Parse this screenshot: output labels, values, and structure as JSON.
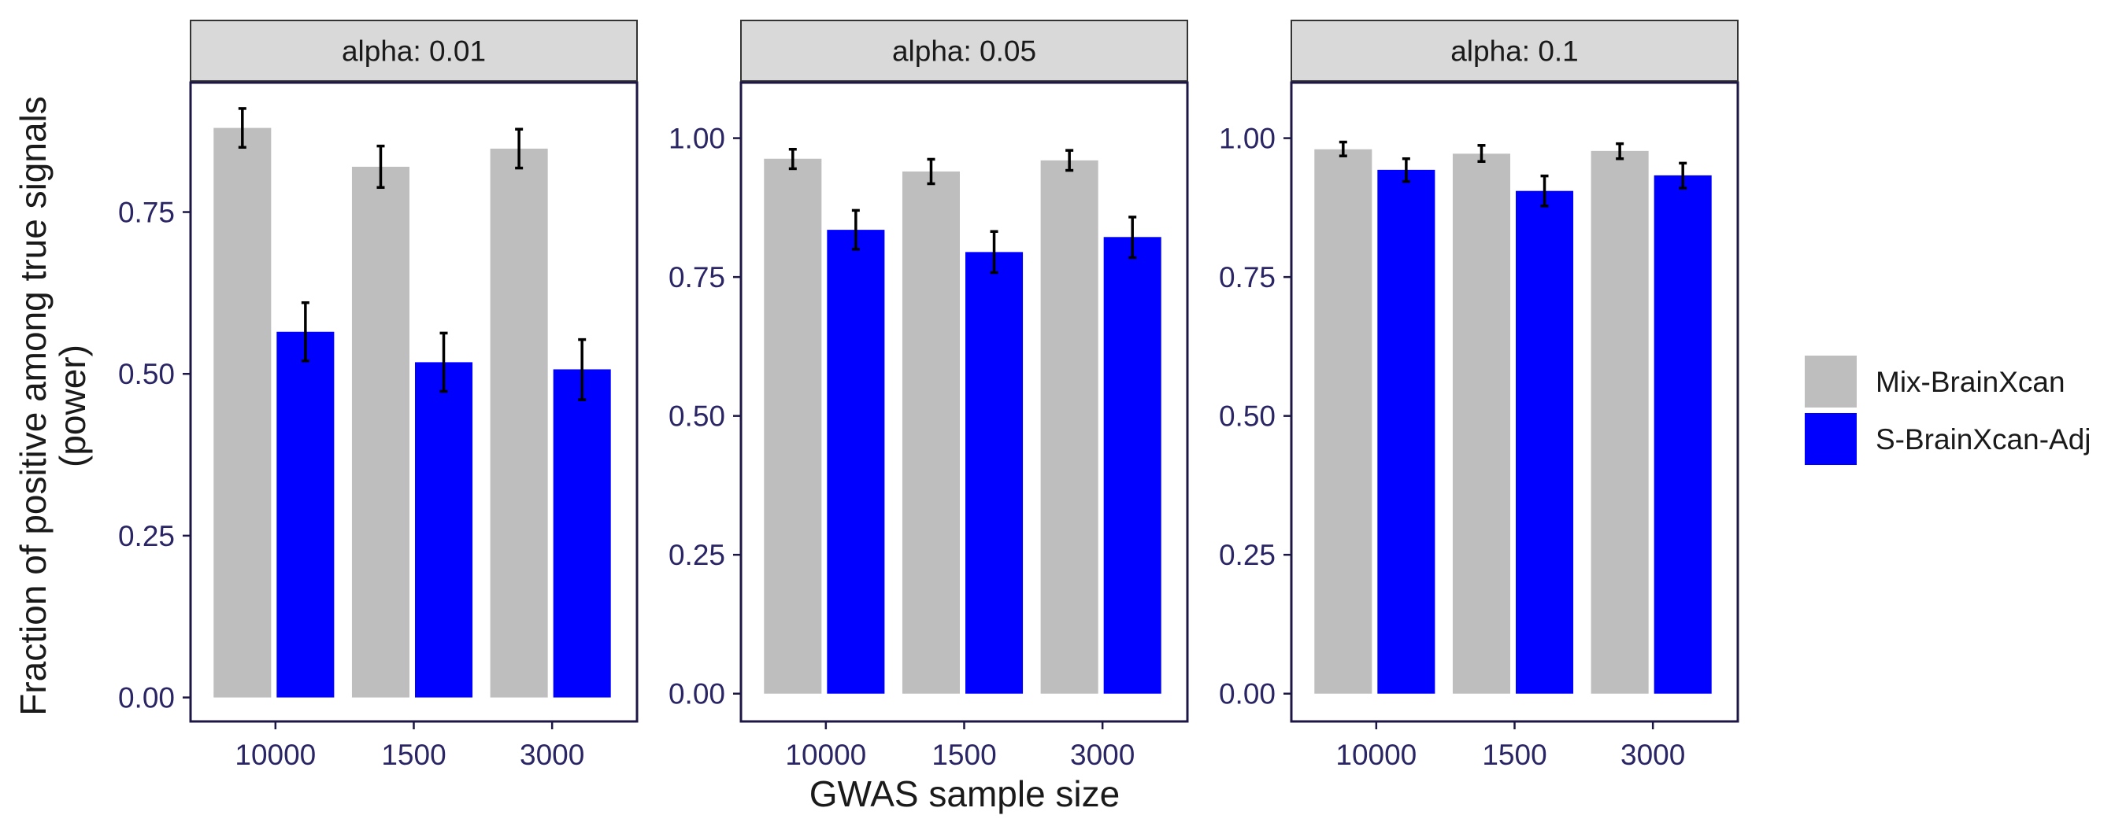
{
  "chart_data": {
    "type": "bar",
    "ylabel_lines": [
      "Fraction of positive among true signals",
      "(power)"
    ],
    "xlabel": "GWAS sample size",
    "categories": [
      "10000",
      "1500",
      "3000"
    ],
    "ylim": [
      0,
      0.95
    ],
    "yticks": [
      "0.00",
      "0.25",
      "0.50",
      "0.75",
      "1.00"
    ],
    "grid": false,
    "legend_position": "right",
    "legend": [
      {
        "name": "Mix-BrainXcan",
        "color": "#bebebe"
      },
      {
        "name": "S-BrainXcan-Adj",
        "color": "#0000ff"
      }
    ],
    "panels": [
      {
        "strip": "alpha: 0.01",
        "ylim": [
          -0.037,
          0.95
        ],
        "series": [
          {
            "name": "Mix-BrainXcan",
            "values": [
              0.88,
              0.82,
              0.848
            ],
            "err_low": [
              0.85,
              0.788,
              0.818
            ],
            "err_high": [
              0.91,
              0.852,
              0.878
            ]
          },
          {
            "name": "S-BrainXcan-Adj",
            "values": [
              0.565,
              0.518,
              0.507
            ],
            "err_low": [
              0.52,
              0.473,
              0.46
            ],
            "err_high": [
              0.61,
              0.563,
              0.553
            ]
          }
        ]
      },
      {
        "strip": "alpha: 0.05",
        "ylim": [
          -0.05,
          1.1
        ],
        "series": [
          {
            "name": "Mix-BrainXcan",
            "values": [
              0.963,
              0.94,
              0.96
            ],
            "err_low": [
              0.945,
              0.918,
              0.942
            ],
            "err_high": [
              0.98,
              0.962,
              0.978
            ]
          },
          {
            "name": "S-BrainXcan-Adj",
            "values": [
              0.835,
              0.795,
              0.822
            ],
            "err_low": [
              0.8,
              0.758,
              0.785
            ],
            "err_high": [
              0.87,
              0.832,
              0.858
            ]
          }
        ]
      },
      {
        "strip": "alpha: 0.1",
        "ylim": [
          -0.05,
          1.1
        ],
        "series": [
          {
            "name": "Mix-BrainXcan",
            "values": [
              0.98,
              0.972,
              0.977
            ],
            "err_low": [
              0.968,
              0.958,
              0.963
            ],
            "err_high": [
              0.993,
              0.987,
              0.99
            ]
          },
          {
            "name": "S-BrainXcan-Adj",
            "values": [
              0.943,
              0.905,
              0.933
            ],
            "err_low": [
              0.922,
              0.878,
              0.91
            ],
            "err_high": [
              0.963,
              0.932,
              0.955
            ]
          }
        ]
      }
    ]
  }
}
